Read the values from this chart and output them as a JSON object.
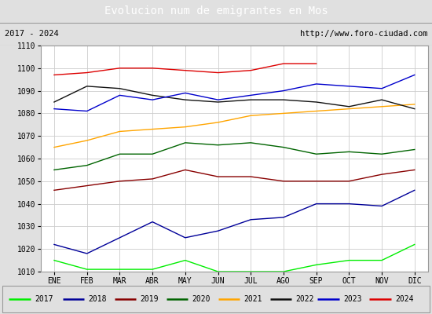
{
  "title": "Evolucion num de emigrantes en Mos",
  "subtitle_left": "2017 - 2024",
  "subtitle_right": "http://www.foro-ciudad.com",
  "months": [
    "ENE",
    "FEB",
    "MAR",
    "ABR",
    "MAY",
    "JUN",
    "JUL",
    "AGO",
    "SEP",
    "OCT",
    "NOV",
    "DIC"
  ],
  "ylim": [
    1010,
    1110
  ],
  "yticks": [
    1010,
    1020,
    1030,
    1040,
    1050,
    1060,
    1070,
    1080,
    1090,
    1100,
    1110
  ],
  "series": {
    "2017": {
      "color": "#00ee00",
      "data": [
        1015,
        1011,
        1011,
        1011,
        1015,
        1010,
        1010,
        1010,
        1013,
        1015,
        1015,
        1022
      ]
    },
    "2018": {
      "color": "#000099",
      "data": [
        1022,
        1018,
        1025,
        1032,
        1025,
        1028,
        1033,
        1034,
        1040,
        1040,
        1039,
        1046
      ]
    },
    "2019": {
      "color": "#880000",
      "data": [
        1046,
        1048,
        1050,
        1051,
        1055,
        1052,
        1052,
        1050,
        1050,
        1050,
        1053,
        1055
      ]
    },
    "2020": {
      "color": "#006400",
      "data": [
        1055,
        1057,
        1062,
        1062,
        1067,
        1066,
        1067,
        1065,
        1062,
        1063,
        1062,
        1064
      ]
    },
    "2021": {
      "color": "#ffa500",
      "data": [
        1065,
        1068,
        1072,
        1073,
        1074,
        1076,
        1079,
        1080,
        1081,
        1082,
        1083,
        1084
      ]
    },
    "2022": {
      "color": "#111111",
      "data": [
        1085,
        1092,
        1091,
        1088,
        1086,
        1085,
        1086,
        1086,
        1085,
        1083,
        1086,
        1082
      ]
    },
    "2023": {
      "color": "#0000cc",
      "data": [
        1082,
        1081,
        1088,
        1086,
        1089,
        1086,
        1088,
        1090,
        1093,
        1092,
        1091,
        1097
      ]
    },
    "2024": {
      "color": "#dd0000",
      "data": [
        1097,
        1098,
        1100,
        1100,
        1099,
        1098,
        1099,
        1102,
        1102,
        null,
        null,
        null
      ]
    }
  },
  "title_bg_color": "#4da6d6",
  "title_fg_color": "#ffffff",
  "plot_bg_color": "#e0e0e0",
  "inner_bg_color": "#ffffff",
  "grid_color": "#cccccc",
  "border_color": "#999999",
  "title_fontsize": 10,
  "subtitle_fontsize": 7.5,
  "tick_fontsize": 7,
  "legend_fontsize": 7
}
